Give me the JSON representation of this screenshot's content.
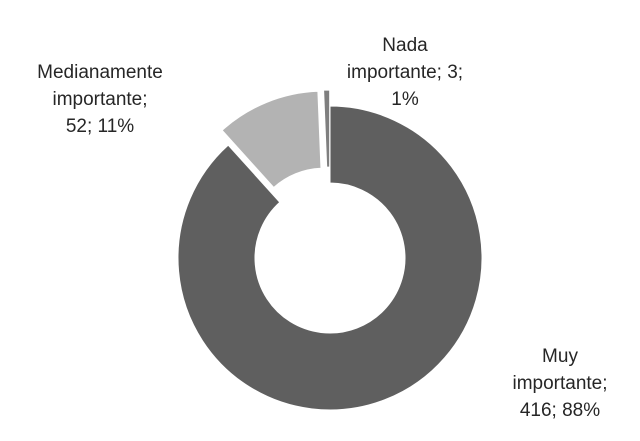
{
  "chart_data": {
    "type": "pie",
    "variant": "donut",
    "slices": [
      {
        "label": "Muy importante",
        "value": 416,
        "percent": "88%",
        "label_lines": [
          "Muy",
          "importante;",
          "416; 88%"
        ],
        "color": "#5f5f5f",
        "exploded": false
      },
      {
        "label": "Medianamente importante",
        "value": 52,
        "percent": "11%",
        "label_lines": [
          "Medianamente",
          "importante;",
          "52; 11%"
        ],
        "color": "#b3b3b3",
        "exploded": true
      },
      {
        "label": "Nada importante",
        "value": 3,
        "percent": "1%",
        "label_lines": [
          "Nada",
          "importante; 3;",
          "1%"
        ],
        "color": "#7f7f7f",
        "exploded": true
      }
    ],
    "title": "",
    "legend": "none"
  }
}
